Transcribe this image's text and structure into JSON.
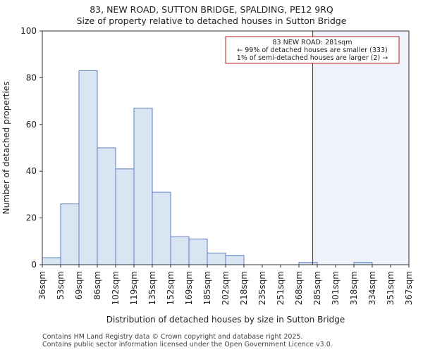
{
  "title_line1": "83, NEW ROAD, SUTTON BRIDGE, SPALDING, PE12 9RQ",
  "title_line2": "Size of property relative to detached houses in Sutton Bridge",
  "footer_line1": "Contains HM Land Registry data © Crown copyright and database right 2025.",
  "footer_line2": "Contains public sector information licensed under the Open Government Licence v3.0.",
  "colors": {
    "bar_fill": "#dae5f4",
    "bar_stroke": "#5a7fbf",
    "marker": "#b22222",
    "highlight": "#eef2fa",
    "annotation_border": "#b22222"
  },
  "chart_data": {
    "type": "bar",
    "title": "Size of property relative to detached houses in Sutton Bridge",
    "xlabel": "Distribution of detached houses by size in Sutton Bridge",
    "ylabel": "Number of detached properties",
    "ylim": [
      0,
      100
    ],
    "yticks": [
      0,
      20,
      40,
      60,
      80,
      100
    ],
    "bin_edges": [
      "36sqm",
      "53sqm",
      "69sqm",
      "86sqm",
      "102sqm",
      "119sqm",
      "135sqm",
      "152sqm",
      "169sqm",
      "185sqm",
      "202sqm",
      "218sqm",
      "235sqm",
      "251sqm",
      "268sqm",
      "285sqm",
      "301sqm",
      "318sqm",
      "334sqm",
      "351sqm",
      "367sqm"
    ],
    "values": [
      3,
      26,
      83,
      50,
      41,
      67,
      31,
      12,
      11,
      5,
      4,
      0,
      0,
      0,
      1,
      0,
      0,
      1,
      0,
      0
    ],
    "marker_value_sqm": 281,
    "marker_bin_position": 14.75,
    "annotation": {
      "line1": "83 NEW ROAD: 281sqm",
      "line2": "← 99% of detached houses are smaller (333)",
      "line3": "1% of semi-detached houses are larger (2) →"
    },
    "grid": false
  }
}
